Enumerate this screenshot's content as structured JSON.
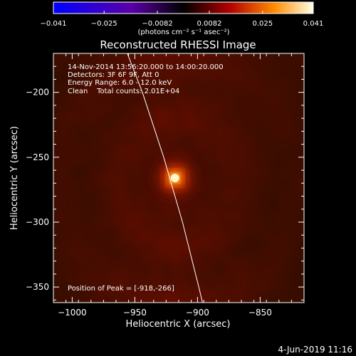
{
  "chart_data": {
    "type": "heatmap",
    "title": "Reconstructed RHESSI Image",
    "xlabel": "Heliocentric X (arcsec)",
    "ylabel": "Heliocentric Y (arcsec)",
    "xlim": [
      -1015,
      -815
    ],
    "ylim": [
      -362,
      -170
    ],
    "x_ticks": [
      -1000,
      -950,
      -900,
      -850
    ],
    "x_tick_labels": [
      "−1000",
      "−950",
      "−900",
      "−850"
    ],
    "y_ticks": [
      -200,
      -250,
      -300,
      -350
    ],
    "y_tick_labels": [
      "−200",
      "−250",
      "−300",
      "−350"
    ],
    "colorbar": {
      "range": [
        -0.041,
        0.041
      ],
      "ticks": [
        -0.041,
        -0.025,
        -0.0082,
        0.0082,
        0.025,
        0.041
      ],
      "tick_labels": [
        "−0.041",
        "−0.025",
        "−0.0082",
        "0.0082",
        "0.025",
        "0.041"
      ],
      "units_label": "(photons cm⁻² s⁻¹ asec⁻²)",
      "colors": [
        "#0000ff",
        "#5a00a8",
        "#000000",
        "#b40000",
        "#ff8c00",
        "#ffffe6"
      ]
    },
    "source": {
      "x": -918,
      "y": -266,
      "peak": 0.041
    },
    "limb": [
      [
        -956,
        -170
      ],
      [
        -944,
        -200
      ],
      [
        -927,
        -250
      ],
      [
        -912,
        -300
      ],
      [
        -899,
        -350
      ],
      [
        -896,
        -362
      ]
    ],
    "info_lines": [
      "14-Nov-2014 13:56:20.000 to 14:00:20.000",
      "Detectors: 3F 6F 9F, Att 0",
      "Energy Range: 6.0 - 12.0 keV",
      "Clean    Total counts: 2.01E+04"
    ],
    "peak_text": "Position of Peak = [-918,-266]"
  },
  "timestamp": "4-Jun-2019 11:16",
  "colors": {
    "background": "#000000",
    "text": "#ffffff",
    "limb": "#ffffff"
  }
}
